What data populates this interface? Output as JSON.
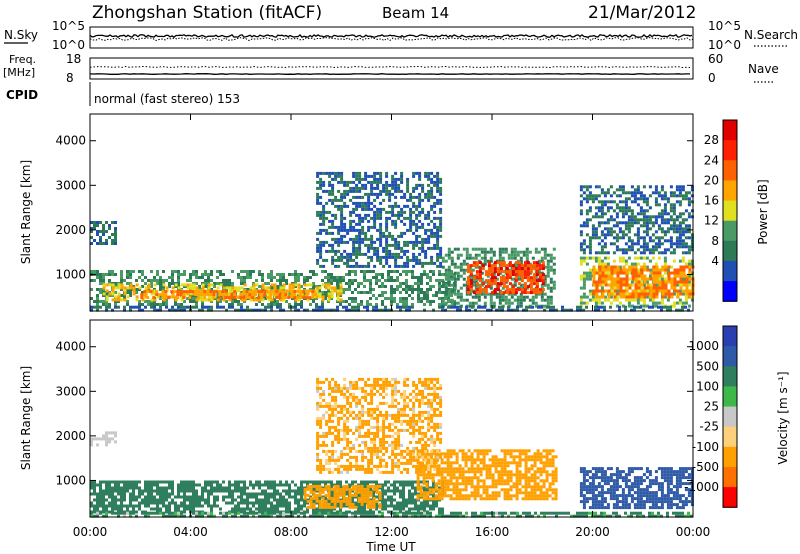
{
  "header": {
    "station": "Zhongshan Station (fitACF)",
    "beam": "Beam 14",
    "date": "21/Mar/2012"
  },
  "strips": {
    "nsky_label": "N.Sky",
    "nsky_ticks": [
      "10^5",
      "10^0"
    ],
    "nsearch_label": "N.Search",
    "nsearch_ticks": [
      "10^5",
      "10^0"
    ],
    "freq_label": "Freq.",
    "freq_unit": "[MHz]",
    "freq_ticks": [
      "18",
      "8"
    ],
    "nave_label": "Nave",
    "nave_ticks": [
      "60",
      "0"
    ],
    "cpid_label": "CPID",
    "cpid_value": "normal (fast stereo) 153"
  },
  "chart_data": [
    {
      "type": "heatmap",
      "name": "power",
      "ylabel": "Slant Range [km]",
      "xlabel": "Time UT",
      "x_ticks": [
        "00:00",
        "04:00",
        "08:00",
        "12:00",
        "16:00",
        "20:00",
        "00:00"
      ],
      "x_tick_hours": [
        0,
        4,
        8,
        12,
        16,
        20,
        24
      ],
      "y_ticks": [
        1000,
        2000,
        3000,
        4000
      ],
      "ylim": [
        180,
        4600
      ],
      "xlim_hours": [
        0,
        24
      ],
      "colorbar_label": "Power [dB]",
      "colorbar_ticks": [
        "28",
        "24",
        "20",
        "16",
        "12",
        "8",
        "4"
      ],
      "colorbar_values": [
        0,
        4,
        8,
        12,
        16,
        20,
        24,
        28,
        30
      ],
      "colorbar_colors": [
        "#0000ff",
        "#1f4fb5",
        "#2d7a56",
        "#4a9a66",
        "#e0e020",
        "#ffa500",
        "#ff6000",
        "#ff2000",
        "#e00000"
      ],
      "regions": [
        {
          "x0": 0,
          "x1": 14.5,
          "y0": 300,
          "y1": 1100,
          "level": 12
        },
        {
          "x0": 0.5,
          "x1": 10,
          "y0": 450,
          "y1": 800,
          "level": 20
        },
        {
          "x0": 2,
          "x1": 9,
          "y0": 480,
          "y1": 650,
          "level": 24
        },
        {
          "x0": 14,
          "x1": 18.5,
          "y0": 300,
          "y1": 1600,
          "level": 12
        },
        {
          "x0": 15,
          "x1": 18,
          "y0": 600,
          "y1": 1300,
          "level": 28
        },
        {
          "x0": 19.5,
          "x1": 24,
          "y0": 300,
          "y1": 1400,
          "level": 16
        },
        {
          "x0": 20,
          "x1": 24,
          "y0": 500,
          "y1": 1200,
          "level": 24
        },
        {
          "x0": 0,
          "x1": 24,
          "y0": 180,
          "y1": 300,
          "level": 8
        },
        {
          "x0": 0,
          "x1": 1,
          "y0": 1700,
          "y1": 2200,
          "level": 8
        },
        {
          "x0": 9,
          "x1": 14,
          "y0": 1200,
          "y1": 3300,
          "level": 8
        },
        {
          "x0": 19.5,
          "x1": 24,
          "y0": 1500,
          "y1": 3000,
          "level": 8
        }
      ]
    },
    {
      "type": "heatmap",
      "name": "velocity",
      "ylabel": "Slant Range [km]",
      "xlabel": "Time UT",
      "x_ticks": [
        "00:00",
        "04:00",
        "08:00",
        "12:00",
        "16:00",
        "20:00",
        "00:00"
      ],
      "x_tick_hours": [
        0,
        4,
        8,
        12,
        16,
        20,
        24
      ],
      "y_ticks": [
        1000,
        2000,
        3000,
        4000
      ],
      "ylim": [
        180,
        4600
      ],
      "xlim_hours": [
        0,
        24
      ],
      "colorbar_label": "Velocity [m s⁻¹]",
      "colorbar_ticks": [
        "1000",
        "500",
        "100",
        "25",
        "-25",
        "-100",
        "-500",
        "-1000"
      ],
      "colorbar_values": [
        1200,
        1000,
        500,
        100,
        25,
        -25,
        -100,
        -500,
        -1000,
        -1200
      ],
      "colorbar_colors": [
        "#2a3fb0",
        "#2e5aa8",
        "#2f7f5e",
        "#3fb84a",
        "#c8c8c8",
        "#ffd07a",
        "#ffa000",
        "#ff7000",
        "#ff0000"
      ],
      "regions": [
        {
          "x0": 0,
          "x1": 14,
          "y0": 300,
          "y1": 1000,
          "level": 300
        },
        {
          "x0": 8.5,
          "x1": 11.5,
          "y0": 400,
          "y1": 900,
          "level": -300
        },
        {
          "x0": 13,
          "x1": 18.5,
          "y0": 600,
          "y1": 1700,
          "level": -300
        },
        {
          "x0": 19.5,
          "x1": 24,
          "y0": 400,
          "y1": 1300,
          "level": 700
        },
        {
          "x0": 0,
          "x1": 1,
          "y0": 1800,
          "y1": 2100,
          "level": 0
        },
        {
          "x0": 9,
          "x1": 14,
          "y0": 1200,
          "y1": 3300,
          "level": -200
        },
        {
          "x0": 0,
          "x1": 24,
          "y0": 180,
          "y1": 300,
          "level": 200
        }
      ]
    }
  ]
}
